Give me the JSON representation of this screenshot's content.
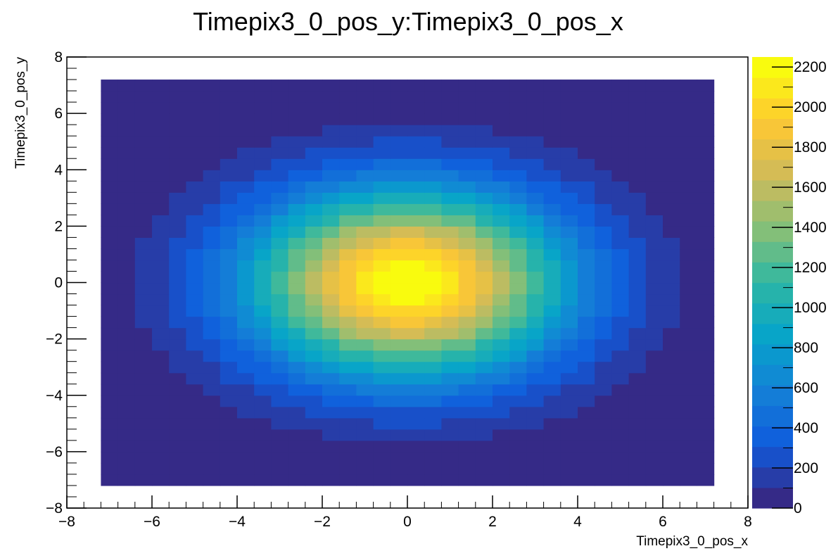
{
  "chart_data": {
    "type": "heatmap",
    "title": "Timepix3_0_pos_y:Timepix3_0_pos_x",
    "xlabel": "Timepix3_0_pos_x",
    "ylabel": "Timepix3_0_pos_y",
    "xlim": [
      -8,
      8
    ],
    "ylim": [
      -8,
      8
    ],
    "x_ticks": [
      "−8",
      "−6",
      "−4",
      "−2",
      "0",
      "2",
      "4",
      "6",
      "8"
    ],
    "y_ticks": [
      "−8",
      "−6",
      "−4",
      "−2",
      "0",
      "2",
      "4",
      "6",
      "8"
    ],
    "x_tick_values": [
      -8,
      -6,
      -4,
      -2,
      0,
      2,
      4,
      6,
      8
    ],
    "y_tick_values": [
      -8,
      -6,
      -4,
      -2,
      0,
      2,
      4,
      6,
      8
    ],
    "colorbar": {
      "range": [
        0,
        2250
      ],
      "ticks": [
        "0",
        "200",
        "400",
        "600",
        "800",
        "1000",
        "1200",
        "1400",
        "1600",
        "1800",
        "2000",
        "2200"
      ],
      "tick_values": [
        0,
        200,
        400,
        600,
        800,
        1000,
        1200,
        1400,
        1600,
        1800,
        2000,
        2200
      ],
      "palette": "kBird",
      "colors": [
        "#352a87",
        "#0f5cdd",
        "#1481d6",
        "#06a4ca",
        "#2eb7a4",
        "#87bf77",
        "#d1bb59",
        "#fec832",
        "#f9fb0e"
      ]
    },
    "grid": false,
    "bins": {
      "x_range": [
        -7.2,
        7.2
      ],
      "y_range": [
        -7.2,
        7.2
      ],
      "nx": 36,
      "ny": 36
    },
    "distribution": {
      "shape": "2D Gaussian",
      "peak": 2250,
      "center": [
        0,
        0
      ],
      "sigma_x": 2.6,
      "sigma_y": 2.3
    }
  }
}
